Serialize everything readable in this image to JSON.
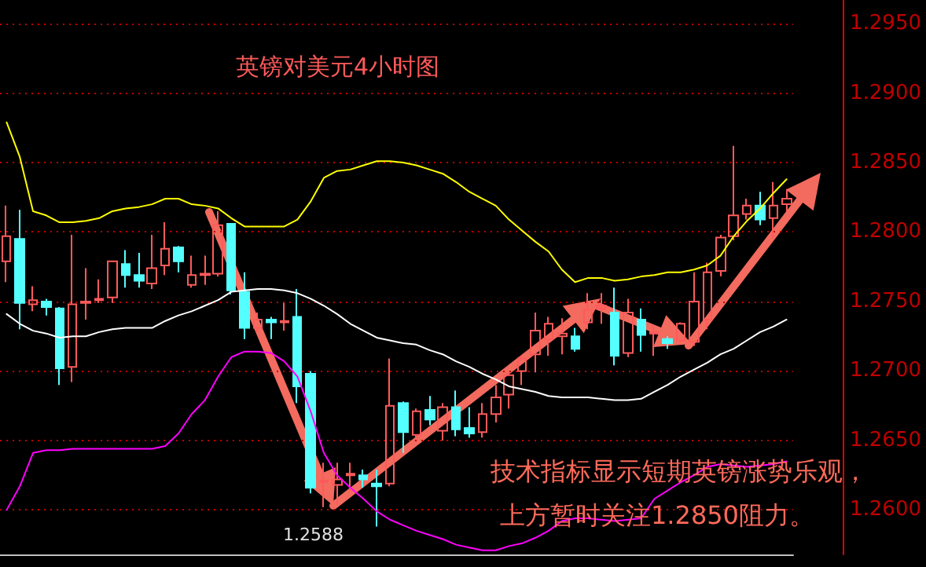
{
  "chart_data": {
    "type": "candlestick",
    "title": "英镑对美元4小时图",
    "annotations": [
      "1.2588",
      "技术指标显示短期英镑涨势乐观，",
      "上方暂时关注1.2850阻力。"
    ],
    "categories": [
      null,
      null,
      null,
      null,
      null,
      null,
      null,
      null,
      null,
      null,
      null,
      null,
      null,
      null,
      null,
      null,
      null,
      null,
      null,
      null,
      null,
      null,
      null,
      null,
      null,
      null,
      null,
      null,
      null,
      null,
      null,
      null,
      null,
      null,
      null,
      null,
      null,
      null,
      null,
      null,
      null,
      null,
      null,
      null,
      null,
      null,
      null,
      null,
      null,
      null,
      null,
      null,
      null,
      null,
      null,
      null,
      null,
      null,
      null,
      null
    ],
    "ohlc": [
      [
        1.2779,
        1.2819,
        1.2764,
        1.2797
      ],
      [
        1.2795,
        1.2816,
        1.273,
        1.2749
      ],
      [
        1.2748,
        1.2761,
        1.2743,
        1.2751
      ],
      [
        1.275,
        1.2752,
        1.274,
        1.2746
      ],
      [
        1.2745,
        1.2746,
        1.269,
        1.2702
      ],
      [
        1.2703,
        1.2798,
        1.2692,
        1.2748
      ],
      [
        1.2749,
        1.2774,
        1.2737,
        1.275
      ],
      [
        1.2751,
        1.2766,
        1.2749,
        1.2752
      ],
      [
        1.2753,
        1.2779,
        1.2749,
        1.2779
      ],
      [
        1.2777,
        1.2787,
        1.276,
        1.2769
      ],
      [
        1.2769,
        1.2785,
        1.276,
        1.2765
      ],
      [
        1.2763,
        1.2798,
        1.2759,
        1.2774
      ],
      [
        1.2776,
        1.2807,
        1.2769,
        1.2788
      ],
      [
        1.2789,
        1.279,
        1.2771,
        1.2779
      ],
      [
        1.2762,
        1.2783,
        1.276,
        1.2769
      ],
      [
        1.2769,
        1.2783,
        1.2762,
        1.277
      ],
      [
        1.277,
        1.2815,
        1.2768,
        1.2805
      ],
      [
        1.2806,
        1.2806,
        1.2755,
        1.2758
      ],
      [
        1.2757,
        1.2771,
        1.2723,
        1.2731
      ],
      [
        1.2731,
        1.2742,
        1.2728,
        1.2737
      ],
      [
        1.2737,
        1.2739,
        1.2723,
        1.2735
      ],
      [
        1.2735,
        1.2749,
        1.2729,
        1.2736
      ],
      [
        1.2739,
        1.2759,
        1.2677,
        1.2689
      ],
      [
        1.2698,
        1.27,
        1.2612,
        1.2616
      ],
      [
        1.262,
        1.2634,
        1.2602,
        1.2621
      ],
      [
        1.2618,
        1.2634,
        1.2604,
        1.2622
      ],
      [
        1.2625,
        1.2634,
        1.2613,
        1.2626
      ],
      [
        1.2625,
        1.2629,
        1.2616,
        1.2622
      ],
      [
        1.2619,
        1.2629,
        1.2588,
        1.2617
      ],
      [
        1.2619,
        1.2709,
        1.2617,
        1.2675
      ],
      [
        1.2677,
        1.2678,
        1.2641,
        1.2656
      ],
      [
        1.2654,
        1.2673,
        1.2651,
        1.2671
      ],
      [
        1.2672,
        1.2682,
        1.2661,
        1.2665
      ],
      [
        1.2657,
        1.2677,
        1.265,
        1.2674
      ],
      [
        1.2674,
        1.2686,
        1.2653,
        1.2658
      ],
      [
        1.2659,
        1.2674,
        1.2652,
        1.2655
      ],
      [
        1.2656,
        1.2677,
        1.2652,
        1.2669
      ],
      [
        1.2669,
        1.269,
        1.2663,
        1.2681
      ],
      [
        1.2683,
        1.2699,
        1.2673,
        1.2697
      ],
      [
        1.27,
        1.2711,
        1.269,
        1.2709
      ],
      [
        1.2712,
        1.2742,
        1.2699,
        1.2729
      ],
      [
        1.2723,
        1.2739,
        1.2711,
        1.2734
      ],
      [
        1.2725,
        1.2738,
        1.2712,
        1.2727
      ],
      [
        1.2725,
        1.2731,
        1.2714,
        1.2716
      ],
      [
        1.2735,
        1.2756,
        1.273,
        1.2744
      ],
      [
        1.2745,
        1.2756,
        1.2734,
        1.2747
      ],
      [
        1.2742,
        1.276,
        1.2704,
        1.2711
      ],
      [
        1.2713,
        1.2752,
        1.271,
        1.2742
      ],
      [
        1.2737,
        1.2745,
        1.2714,
        1.2726
      ],
      [
        1.2727,
        1.2733,
        1.2711,
        1.2728
      ],
      [
        1.2723,
        1.2725,
        1.2716,
        1.272
      ],
      [
        1.2722,
        1.2735,
        1.2721,
        1.2734
      ],
      [
        1.2721,
        1.2771,
        1.2718,
        1.275
      ],
      [
        1.2737,
        1.2778,
        1.273,
        1.2771
      ],
      [
        1.2772,
        1.2798,
        1.2768,
        1.2796
      ],
      [
        1.2797,
        1.2862,
        1.2794,
        1.2812
      ],
      [
        1.2813,
        1.2824,
        1.2809,
        1.2819
      ],
      [
        1.2819,
        1.2829,
        1.2805,
        1.2809
      ],
      [
        1.281,
        1.2836,
        1.2795,
        1.2819
      ],
      [
        1.282,
        1.2831,
        1.2815,
        1.2824
      ]
    ],
    "series": [
      {
        "type": "line",
        "color": "#ffff00",
        "values": [
          1.2879,
          1.2854,
          1.2815,
          1.2812,
          1.2807,
          1.2807,
          1.2808,
          1.281,
          1.2815,
          1.2817,
          1.2818,
          1.282,
          1.2824,
          1.2824,
          1.282,
          1.2819,
          1.2817,
          1.281,
          1.2804,
          1.2804,
          1.2804,
          1.2804,
          1.2809,
          1.2822,
          1.2839,
          1.2844,
          1.2845,
          1.2848,
          1.2851,
          1.2851,
          1.285,
          1.2848,
          1.2845,
          1.2842,
          1.2836,
          1.2829,
          1.2824,
          1.2819,
          1.2809,
          1.2801,
          1.2793,
          1.2786,
          1.2773,
          1.2764,
          1.2767,
          1.2767,
          1.2765,
          1.2766,
          1.2768,
          1.2769,
          1.2771,
          1.2771,
          1.2773,
          1.2776,
          1.2783,
          1.2797,
          1.2808,
          1.2817,
          1.2828,
          1.2838
        ]
      },
      {
        "type": "line",
        "color": "#ffffff",
        "values": [
          1.2741,
          1.2734,
          1.2729,
          1.2727,
          1.2724,
          1.2725,
          1.2725,
          1.2728,
          1.273,
          1.2731,
          1.2731,
          1.2731,
          1.2736,
          1.274,
          1.2743,
          1.2747,
          1.2751,
          1.2757,
          1.2758,
          1.2759,
          1.2759,
          1.2758,
          1.2756,
          1.2752,
          1.2747,
          1.2741,
          1.2734,
          1.2729,
          1.2724,
          1.2722,
          1.272,
          1.2719,
          1.2715,
          1.2712,
          1.2707,
          1.2703,
          1.2698,
          1.2694,
          1.2689,
          1.2687,
          1.2685,
          1.2682,
          1.2681,
          1.2681,
          1.2681,
          1.268,
          1.2679,
          1.2679,
          1.268,
          1.2685,
          1.269,
          1.2696,
          1.2701,
          1.2706,
          1.2712,
          1.2716,
          1.2722,
          1.2728,
          1.2732,
          1.2737
        ]
      },
      {
        "type": "line",
        "color": "#ff00ff",
        "values": [
          1.26,
          1.2617,
          1.2641,
          1.2643,
          1.2643,
          1.2644,
          1.2644,
          1.2644,
          1.2644,
          1.2644,
          1.2644,
          1.2644,
          1.2646,
          1.2655,
          1.2669,
          1.2679,
          1.2696,
          1.271,
          1.2714,
          1.2714,
          1.2713,
          1.2707,
          1.2696,
          1.2671,
          1.2641,
          1.2625,
          1.2616,
          1.2608,
          1.2599,
          1.2593,
          1.2589,
          1.2585,
          1.2582,
          1.2579,
          1.2575,
          1.2573,
          1.2571,
          1.2571,
          1.2574,
          1.2576,
          1.258,
          1.2585,
          1.2592,
          1.2594,
          1.2594,
          1.2593,
          1.2592,
          1.2593,
          1.2594,
          1.2608,
          1.2614,
          1.262,
          1.2625,
          1.2631,
          1.2633,
          1.2632,
          1.2631,
          1.2632,
          1.2633,
          1.2635
        ]
      }
    ],
    "ylim": [
      1.2568,
      1.2967
    ],
    "yticks": [
      {
        "value": 1.26,
        "label": "1.2600"
      },
      {
        "value": 1.265,
        "label": "1.2650"
      },
      {
        "value": 1.27,
        "label": "1.2700"
      },
      {
        "value": 1.275,
        "label": "1.2750"
      },
      {
        "value": 1.28,
        "label": "1.2800"
      },
      {
        "value": 1.285,
        "label": "1.2850"
      },
      {
        "value": 1.29,
        "label": "1.2900"
      },
      {
        "value": 1.295,
        "label": "1.2950"
      }
    ],
    "grid": "y",
    "tick_labels": "y",
    "line_style": "solid"
  }
}
